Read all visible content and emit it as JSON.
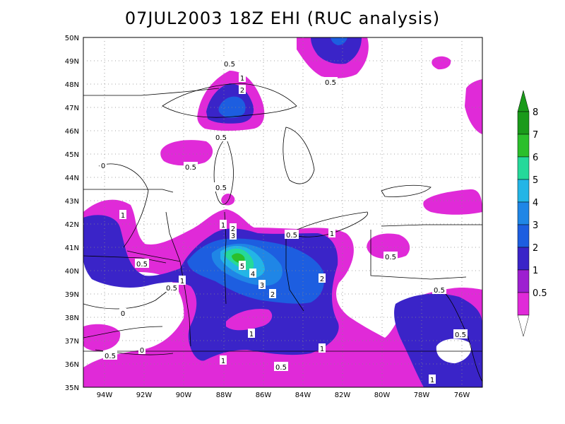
{
  "title": "07JUL2003 18Z EHI (RUC analysis)",
  "map": {
    "lon_ticks": [
      "94W",
      "92W",
      "90W",
      "88W",
      "86W",
      "84W",
      "82W",
      "80W",
      "78W",
      "76W"
    ],
    "lat_ticks": [
      "50N",
      "49N",
      "48N",
      "47N",
      "46N",
      "45N",
      "44N",
      "43N",
      "42N",
      "41N",
      "40N",
      "39N",
      "38N",
      "37N",
      "36N",
      "35N"
    ],
    "contour_labels": [
      "1",
      "2",
      "0.5",
      "0.5",
      "0.5",
      "0.5",
      "1",
      "0.5",
      "0",
      "1",
      "1",
      "2",
      "3",
      "0.5",
      "0",
      "0.5",
      "0.5",
      "5",
      "4",
      "3",
      "2",
      "2",
      "1",
      "0",
      "1",
      "0.5",
      "1",
      "0.5",
      "0.5",
      "0.5",
      "1",
      "0.5",
      "1"
    ]
  },
  "colorbar": {
    "labels": [
      "8",
      "7",
      "6",
      "5",
      "4",
      "3",
      "2",
      "1",
      "0.5"
    ],
    "colors": [
      "#1a9a1a",
      "#2bbf2b",
      "#25d99a",
      "#23b5e6",
      "#1f86e6",
      "#1d5ee0",
      "#3a24c8",
      "#9d1fd0",
      "#e02ad8"
    ]
  }
}
